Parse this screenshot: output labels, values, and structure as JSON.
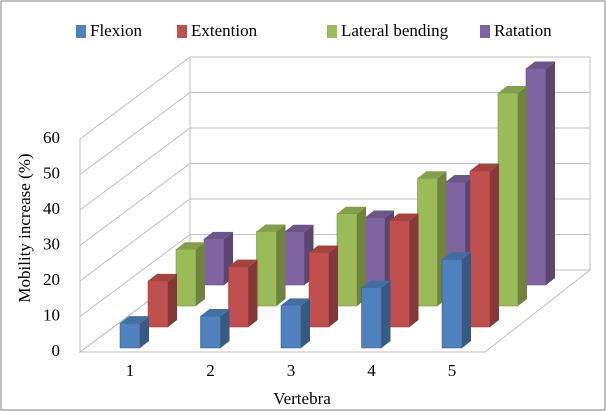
{
  "chart_data": {
    "type": "bar3d",
    "x_label": "Vertebra",
    "y_label": "Mobility increase (%)",
    "categories": [
      "1",
      "2",
      "3",
      "4",
      "5"
    ],
    "series": [
      {
        "name": "Flexion",
        "color": "#4f81bd",
        "values": [
          7,
          9,
          12,
          17,
          25
        ]
      },
      {
        "name": "Extention",
        "color": "#c0504d",
        "values": [
          13,
          17,
          21,
          30,
          44
        ]
      },
      {
        "name": "Lateral bending",
        "color": "#9bbb59",
        "values": [
          16,
          21,
          26,
          36,
          60
        ]
      },
      {
        "name": "Ratation",
        "color": "#8064a2",
        "values": [
          13,
          15,
          19,
          29,
          61
        ]
      }
    ],
    "ylim": [
      0,
      60
    ],
    "yticks": [
      0,
      10,
      20,
      30,
      40,
      50,
      60
    ],
    "grid": true,
    "legend": "top"
  }
}
